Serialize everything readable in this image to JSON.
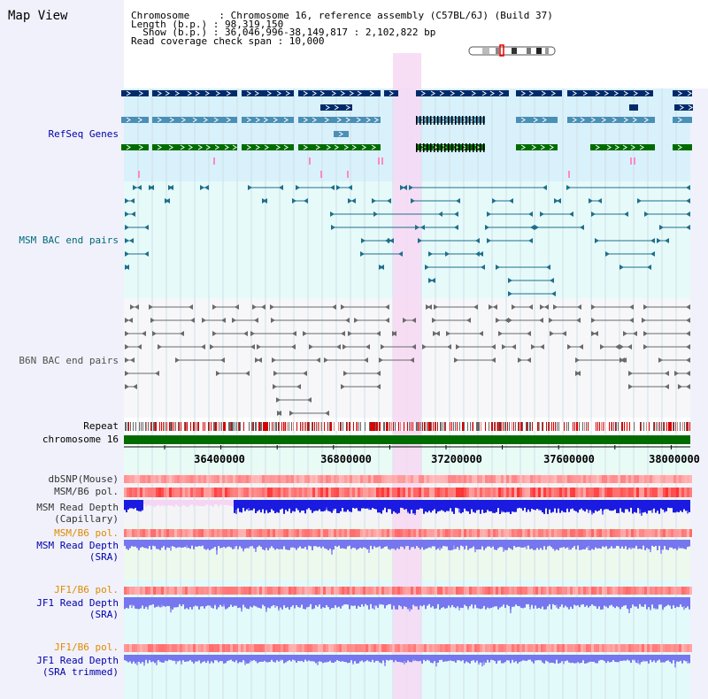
{
  "header": {
    "title": "Map View",
    "chromosome_line": "Chromosome     : Chromosome 16, reference assembly (C57BL/6J) (Build 37)",
    "length_line": "Length (b.p.) : 98,319,150",
    "show_line": "  Show (b.p.) : 36,046,996-38,149,817 : 2,102,822 bp",
    "coverage_line": "Read coverage check span : 10,000"
  },
  "tracks": {
    "refseq": "RefSeq Genes",
    "msm_bac": "MSM BAC end pairs",
    "b6n_bac": "B6N BAC end pairs",
    "repeat": "Repeat",
    "chromosome": "chromosome 16",
    "dbsnp": "dbSNP(Mouse)",
    "msm_b6_pol_1": "MSM/B6 pol.",
    "msm_read_depth_cap_1": "MSM Read Depth",
    "msm_read_depth_cap_2": "(Capillary)",
    "msm_b6_pol_2": "MSM/B6 pol.",
    "msm_read_depth_sra_1": "MSM Read Depth",
    "msm_read_depth_sra_2": "(SRA)",
    "jf1_b6_pol_1": "JF1/B6 pol.",
    "jf1_read_depth_sra_1": "JF1 Read Depth",
    "jf1_read_depth_sra_2": "(SRA)",
    "jf1_b6_pol_2": "JF1/B6 pol.",
    "jf1_read_depth_trim_1": "JF1 Read Depth",
    "jf1_read_depth_trim_2": "(SRA trimmed)"
  },
  "axis": {
    "ticks": [
      "36400000",
      "36800000",
      "37200000",
      "37600000",
      "38000000"
    ]
  },
  "colors": {
    "refseq_dark": "#002b6b",
    "refseq_light": "#4a8fb6",
    "refseq_green": "#006c00",
    "bac_msm": "#1f6f8b",
    "bac_b6n": "#6a6a6a",
    "highlight": "#f7d8f3",
    "depth_blue": "#1a1ae0",
    "depth_light": "#7676ee"
  }
}
